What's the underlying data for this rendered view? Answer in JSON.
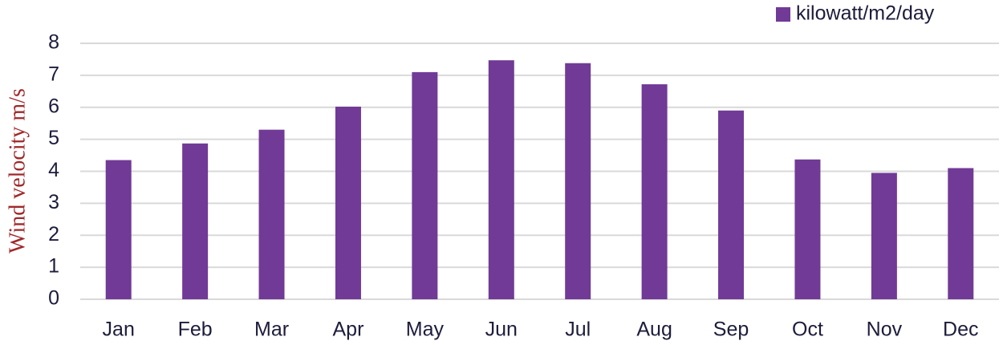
{
  "chart_data": {
    "type": "bar",
    "y_label": "Wind velocity m/s",
    "categories": [
      "Jan",
      "Feb",
      "Mar",
      "Apr",
      "May",
      "Jun",
      "Jul",
      "Aug",
      "Sep",
      "Oct",
      "Nov",
      "Dec"
    ],
    "series": [
      {
        "name": "kilowatt/m2/day",
        "color": "#713a96",
        "values": [
          4.35,
          4.87,
          5.3,
          6.02,
          7.1,
          7.47,
          7.38,
          6.72,
          5.9,
          4.37,
          3.95,
          4.1
        ]
      }
    ],
    "ylim": [
      0,
      8
    ],
    "yticks": [
      0,
      1,
      2,
      3,
      4,
      5,
      6,
      7,
      8
    ],
    "grid": true,
    "legend": "top-right"
  }
}
